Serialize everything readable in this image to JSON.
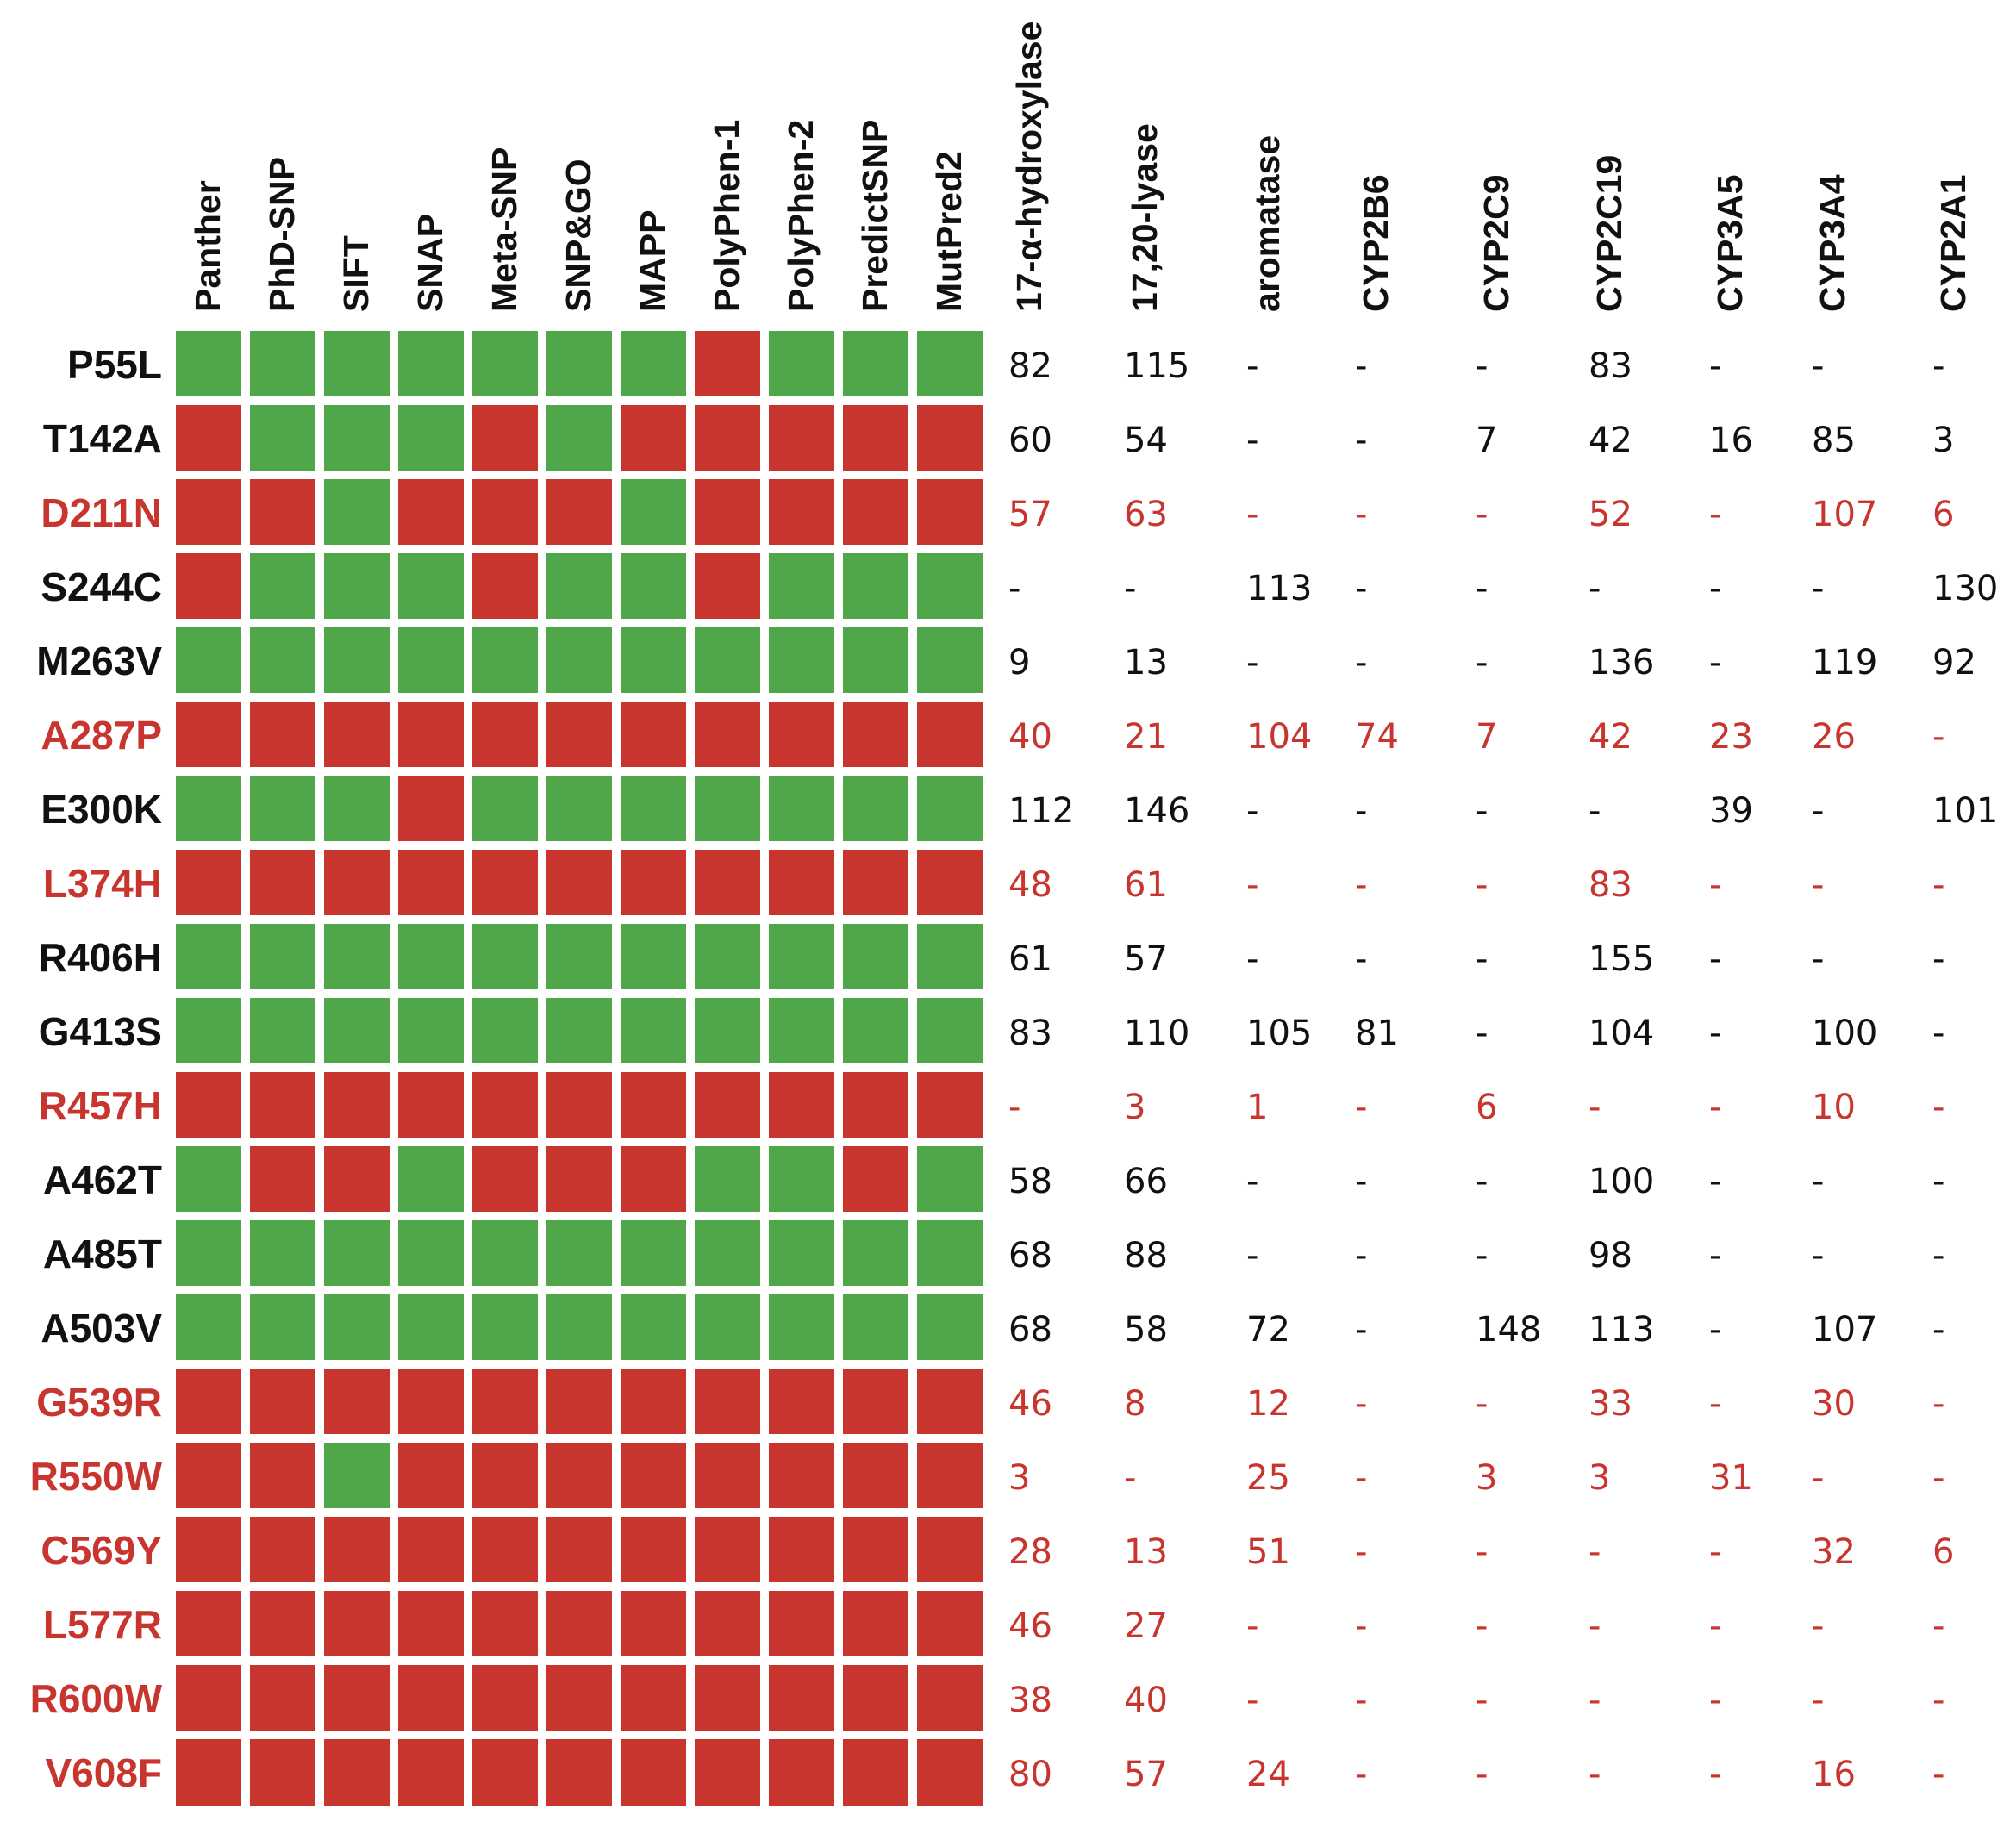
{
  "chart_data": {
    "type": "heatmap",
    "colors": {
      "deleterious": "#c7352e",
      "neutral": "#4fa74a",
      "highlight_text": "#c7352e",
      "normal_text": "#111111"
    },
    "predictors": [
      "Panther",
      "PhD-SNP",
      "SIFT",
      "SNAP",
      "Meta-SNP",
      "SNP&GO",
      "MAPP",
      "PolyPhen-1",
      "PolyPhen-2",
      "PredictSNP",
      "MutPred2"
    ],
    "activities": [
      "17-α-hydroxylase",
      "17,20-lyase",
      "aromatase",
      "CYP2B6",
      "CYP2C9",
      "CYP2C19",
      "CYP3A5",
      "CYP3A4",
      "CYP2A1"
    ],
    "rows": [
      {
        "variant": "P55L",
        "highlight": false,
        "predictions": "GGGGGGGRGGG",
        "values": [
          "82",
          "115",
          "-",
          "-",
          "-",
          "83",
          "-",
          "-",
          "-"
        ]
      },
      {
        "variant": "T142A",
        "highlight": false,
        "predictions": "RGGGRGRRRRR",
        "values": [
          "60",
          "54",
          "-",
          "-",
          "7",
          "42",
          "16",
          "85",
          "3"
        ]
      },
      {
        "variant": "D211N",
        "highlight": true,
        "predictions": "RRGRRRGRRRR",
        "values": [
          "57",
          "63",
          "-",
          "-",
          "-",
          "52",
          "-",
          "107",
          "6"
        ]
      },
      {
        "variant": "S244C",
        "highlight": false,
        "predictions": "RGGGRGGRGGG",
        "values": [
          "-",
          "-",
          "113",
          "-",
          "-",
          "-",
          "-",
          "-",
          "130"
        ]
      },
      {
        "variant": "M263V",
        "highlight": false,
        "predictions": "GGGGGGGGGGG",
        "values": [
          "9",
          "13",
          "-",
          "-",
          "-",
          "136",
          "-",
          "119",
          "92"
        ]
      },
      {
        "variant": "A287P",
        "highlight": true,
        "predictions": "RRRRRRRRRRR",
        "values": [
          "40",
          "21",
          "104",
          "74",
          "7",
          "42",
          "23",
          "26",
          "-"
        ]
      },
      {
        "variant": "E300K",
        "highlight": false,
        "predictions": "GGGRGGGGGGG",
        "values": [
          "112",
          "146",
          "-",
          "-",
          "-",
          "-",
          "39",
          "-",
          "101"
        ]
      },
      {
        "variant": "L374H",
        "highlight": true,
        "predictions": "RRRRRRRRRRR",
        "values": [
          "48",
          "61",
          "-",
          "-",
          "-",
          "83",
          "-",
          "-",
          "-"
        ]
      },
      {
        "variant": "R406H",
        "highlight": false,
        "predictions": "GGGGGGGGGGG",
        "values": [
          "61",
          "57",
          "-",
          "-",
          "-",
          "155",
          "-",
          "-",
          "-"
        ]
      },
      {
        "variant": "G413S",
        "highlight": false,
        "predictions": "GGGGGGGGGGG",
        "values": [
          "83",
          "110",
          "105",
          "81",
          "-",
          "104",
          "-",
          "100",
          "-"
        ]
      },
      {
        "variant": "R457H",
        "highlight": true,
        "predictions": "RRRRRRRRRRR",
        "values": [
          "-",
          "3",
          "1",
          "-",
          "6",
          "-",
          "-",
          "10",
          "-"
        ]
      },
      {
        "variant": "A462T",
        "highlight": false,
        "predictions": "GRRGRRRGGRG",
        "values": [
          "58",
          "66",
          "-",
          "-",
          "-",
          "100",
          "-",
          "-",
          "-"
        ]
      },
      {
        "variant": "A485T",
        "highlight": false,
        "predictions": "GGGGGGGGGGG",
        "values": [
          "68",
          "88",
          "-",
          "-",
          "-",
          "98",
          "-",
          "-",
          "-"
        ]
      },
      {
        "variant": "A503V",
        "highlight": false,
        "predictions": "GGGGGGGGGGG",
        "values": [
          "68",
          "58",
          "72",
          "-",
          "148",
          "113",
          "-",
          "107",
          "-"
        ]
      },
      {
        "variant": "G539R",
        "highlight": true,
        "predictions": "RRRRRRRRRRR",
        "values": [
          "46",
          "8",
          "12",
          "-",
          "-",
          "33",
          "-",
          "30",
          "-"
        ]
      },
      {
        "variant": "R550W",
        "highlight": true,
        "predictions": "RRGRRRRRRRR",
        "values": [
          "3",
          "-",
          "25",
          "-",
          "3",
          "3",
          "31",
          "-",
          "-"
        ]
      },
      {
        "variant": "C569Y",
        "highlight": true,
        "predictions": "RRRRRRRRRRR",
        "values": [
          "28",
          "13",
          "51",
          "-",
          "-",
          "-",
          "-",
          "32",
          "6"
        ]
      },
      {
        "variant": "L577R",
        "highlight": true,
        "predictions": "RRRRRRRRRRR",
        "values": [
          "46",
          "27",
          "-",
          "-",
          "-",
          "-",
          "-",
          "-",
          "-"
        ]
      },
      {
        "variant": "R600W",
        "highlight": true,
        "predictions": "RRRRRRRRRRR",
        "values": [
          "38",
          "40",
          "-",
          "-",
          "-",
          "-",
          "-",
          "-",
          "-"
        ]
      },
      {
        "variant": "V608F",
        "highlight": true,
        "predictions": "RRRRRRRRRRR",
        "values": [
          "80",
          "57",
          "24",
          "-",
          "-",
          "-",
          "-",
          "16",
          "-"
        ]
      }
    ]
  }
}
